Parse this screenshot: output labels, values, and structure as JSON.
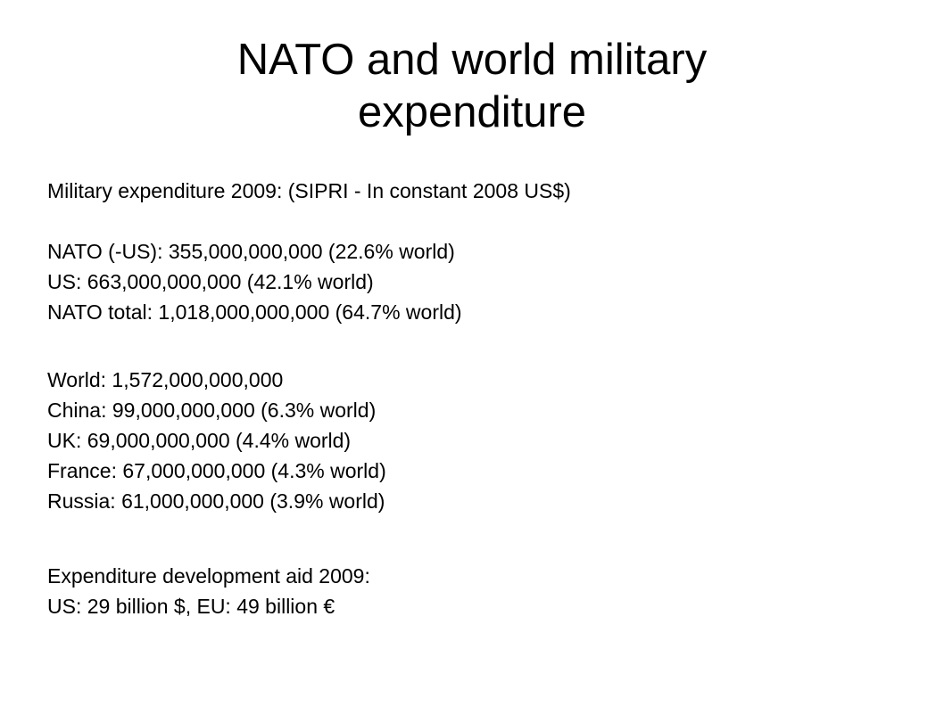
{
  "slide": {
    "title_line1": "NATO and world military",
    "title_line2": "expenditure",
    "header_line": "Military expenditure 2009:  (SIPRI - In constant 2008 US$)",
    "nato_lines": [
      "NATO (-US): 355,000,000,000  (22.6% world)",
      "US: 663,000,000,000 (42.1% world)",
      "NATO total: 1,018,000,000,000 (64.7% world)"
    ],
    "world_lines": [
      "World: 1,572,000,000,000",
      "China: 99,000,000,000 (6.3% world)",
      "UK: 69,000,000,000 (4.4% world)",
      "France: 67,000,000,000 (4.3% world)",
      "Russia: 61,000,000,000 (3.9% world)"
    ],
    "aid_lines": [
      "Expenditure development aid 2009:",
      "US: 29 billion $, EU: 49 billion €"
    ]
  }
}
